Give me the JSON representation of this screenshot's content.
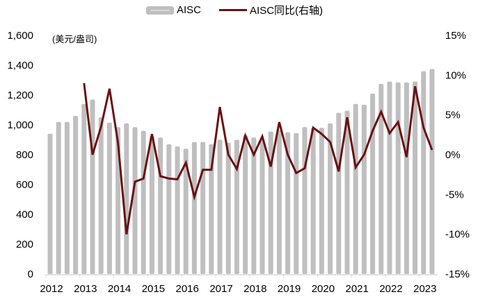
{
  "legend": {
    "bar_label": "AISC",
    "line_label": "AISC同比(右轴)"
  },
  "unit_label": "(美元/盎司)",
  "colors": {
    "bar": "#bfbfbf",
    "line": "#6b1010",
    "axis": "#d9d9d9"
  },
  "chart_data": {
    "type": "bar+line",
    "title": "",
    "xlabel": "",
    "ylabel": "(美元/盎司)",
    "y2label": "AISC同比(右轴)",
    "ylim": [
      0,
      1600
    ],
    "y2lim": [
      -15,
      15
    ],
    "yticks": [
      "0",
      "200",
      "400",
      "600",
      "800",
      "1,000",
      "1,200",
      "1,400",
      "1,600"
    ],
    "y2ticks": [
      "-15%",
      "-10%",
      "-5%",
      "0%",
      "5%",
      "10%",
      "15%"
    ],
    "xticks": [
      "2012",
      "2013",
      "2014",
      "2015",
      "2016",
      "2017",
      "2018",
      "2019",
      "2020",
      "2021",
      "2022",
      "2023"
    ],
    "grid": false,
    "legend_position": "top",
    "categories": [
      "2012Q1",
      "2012Q2",
      "2012Q3",
      "2012Q4",
      "2013Q1",
      "2013Q2",
      "2013Q3",
      "2013Q4",
      "2014Q1",
      "2014Q2",
      "2014Q3",
      "2014Q4",
      "2015Q1",
      "2015Q2",
      "2015Q3",
      "2015Q4",
      "2016Q1",
      "2016Q2",
      "2016Q3",
      "2016Q4",
      "2017Q1",
      "2017Q2",
      "2017Q3",
      "2017Q4",
      "2018Q1",
      "2018Q2",
      "2018Q3",
      "2018Q4",
      "2019Q1",
      "2019Q2",
      "2019Q3",
      "2019Q4",
      "2020Q1",
      "2020Q2",
      "2020Q3",
      "2020Q4",
      "2021Q1",
      "2021Q2",
      "2021Q3",
      "2021Q4",
      "2022Q1",
      "2022Q2",
      "2022Q3",
      "2022Q4",
      "2023Q1",
      "2023Q2"
    ],
    "series": [
      {
        "name": "AISC",
        "type": "bar",
        "axis": "left",
        "values": [
          940,
          1020,
          1020,
          1060,
          1140,
          1170,
          1050,
          1015,
          985,
          1010,
          985,
          960,
          925,
          915,
          870,
          855,
          840,
          885,
          885,
          870,
          900,
          880,
          900,
          930,
          915,
          900,
          955,
          965,
          950,
          945,
          985,
          980,
          980,
          1010,
          1080,
          1095,
          1140,
          1135,
          1210,
          1275,
          1290,
          1285,
          1285,
          1290,
          1360,
          1375
        ]
      },
      {
        "name": "AISC同比(右轴)",
        "type": "line",
        "axis": "right",
        "values": [
          null,
          null,
          null,
          null,
          9.0,
          0.0,
          3.5,
          8.3,
          1.5,
          -10.0,
          -3.4,
          -3.0,
          2.6,
          -2.7,
          -3.0,
          -3.1,
          -1.0,
          -5.3,
          -1.9,
          -1.9,
          6.0,
          0.0,
          -1.8,
          2.4,
          0.0,
          2.3,
          -1.5,
          4.1,
          0.0,
          -2.3,
          -1.7,
          3.4,
          2.6,
          1.6,
          -2.1,
          4.7,
          -1.6,
          0.0,
          3.0,
          5.4,
          2.7,
          4.1,
          -0.3,
          8.6,
          3.4,
          0.6
        ]
      }
    ]
  }
}
